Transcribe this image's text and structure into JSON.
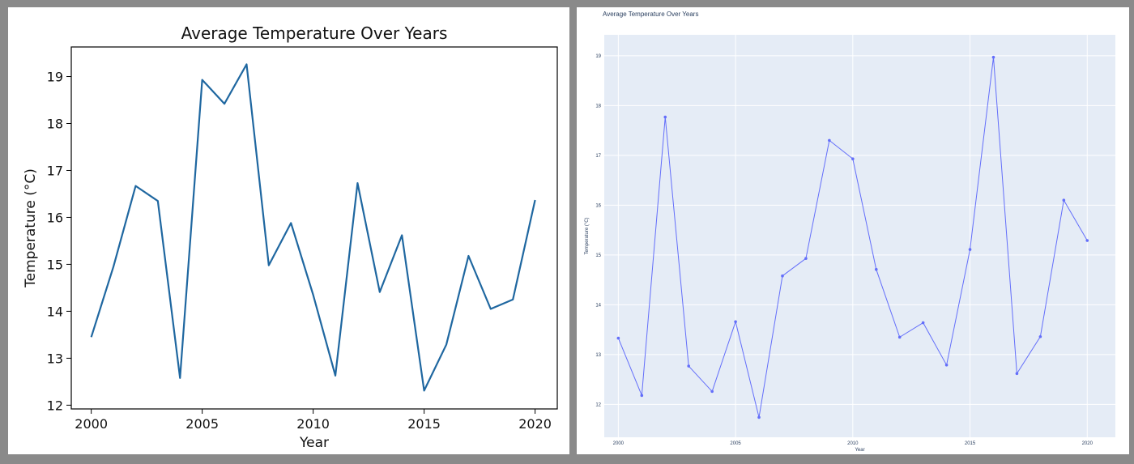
{
  "chart_data": [
    {
      "type": "line",
      "title": "Average Temperature Over Years",
      "xlabel": "Year",
      "ylabel": "Temperature (°C)",
      "x": [
        2000,
        2001,
        2002,
        2003,
        2004,
        2005,
        2006,
        2007,
        2008,
        2009,
        2010,
        2011,
        2012,
        2013,
        2014,
        2015,
        2016,
        2017,
        2018,
        2019,
        2020
      ],
      "series": [
        {
          "values": [
            13.45,
            14.95,
            16.67,
            16.35,
            12.58,
            18.93,
            18.42,
            19.26,
            14.98,
            15.88,
            14.35,
            12.63,
            16.73,
            14.41,
            15.62,
            12.31,
            13.29,
            15.18,
            14.05,
            14.25,
            16.37
          ]
        }
      ],
      "xlim": [
        1999.1,
        2021.0
      ],
      "ylim": [
        11.92,
        19.63
      ],
      "xticks": [
        2000,
        2005,
        2010,
        2015,
        2020
      ],
      "yticks": [
        12,
        13,
        14,
        15,
        16,
        17,
        18,
        19
      ],
      "color": "#1f67a0",
      "grid": false
    },
    {
      "type": "line",
      "title": "Average Temperature Over Years",
      "xlabel": "Year",
      "ylabel": "Temperature (°C)",
      "x": [
        2000,
        2001,
        2002,
        2003,
        2004,
        2005,
        2006,
        2007,
        2008,
        2009,
        2010,
        2011,
        2012,
        2013,
        2014,
        2015,
        2016,
        2017,
        2018,
        2019,
        2020
      ],
      "series": [
        {
          "values": [
            13.33,
            12.18,
            17.77,
            12.77,
            12.26,
            13.66,
            11.74,
            14.58,
            14.93,
            17.3,
            16.93,
            14.71,
            13.35,
            13.64,
            12.79,
            15.11,
            18.97,
            12.62,
            13.36,
            16.1,
            15.29
          ]
        }
      ],
      "xlim": [
        1999.4,
        2021.2
      ],
      "ylim": [
        11.34,
        19.42
      ],
      "xticks": [
        2000,
        2005,
        2010,
        2015,
        2020
      ],
      "yticks": [
        12,
        13,
        14,
        15,
        16,
        17,
        18,
        19
      ],
      "color": "#636efa",
      "plot_bgcolor": "#e5ecf6",
      "grid": true
    }
  ]
}
